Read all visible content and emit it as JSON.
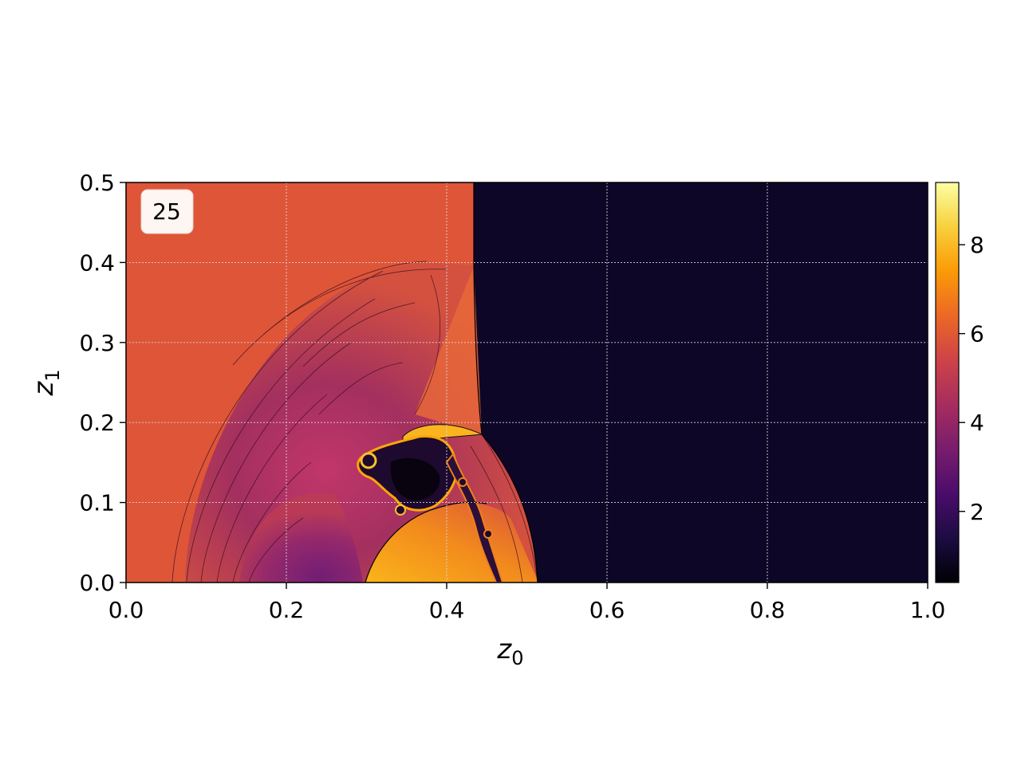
{
  "chart_data": {
    "type": "heatmap",
    "title": "",
    "annotation": "25",
    "xlabel": "z",
    "xlabel_sub": "0",
    "ylabel": "z",
    "ylabel_sub": "1",
    "xlim": [
      0.0,
      1.0
    ],
    "ylim": [
      0.0,
      0.5
    ],
    "x_ticks": [
      0.0,
      0.2,
      0.4,
      0.6,
      0.8,
      1.0
    ],
    "y_ticks": [
      0.0,
      0.1,
      0.2,
      0.3,
      0.4,
      0.5
    ],
    "x_tick_labels": [
      "0.0",
      "0.2",
      "0.4",
      "0.6",
      "0.8",
      "1.0"
    ],
    "y_tick_labels": [
      "0.0",
      "0.1",
      "0.2",
      "0.3",
      "0.4",
      "0.5"
    ],
    "grid": true,
    "colormap": "inferno",
    "colorbar": {
      "range": [
        0.4,
        9.4
      ],
      "ticks": [
        2,
        4,
        6,
        8
      ],
      "tick_labels": [
        "2",
        "4",
        "6",
        "8"
      ],
      "stops": [
        "#000004",
        "#1b0c41",
        "#4a0c6b",
        "#781c6d",
        "#a52c60",
        "#cf4446",
        "#ed6925",
        "#fb9b06",
        "#f7d13d",
        "#fcffa4"
      ]
    },
    "regions": {
      "upper_left_value": 6.0,
      "right_value": 1.0,
      "shock_front_x": 0.435,
      "jet_tip_x": 0.51
    }
  },
  "colors": {
    "dark": "#0e0626",
    "orange": "#e05438",
    "magenta": "#7f2070",
    "bright": "#fca50a"
  }
}
